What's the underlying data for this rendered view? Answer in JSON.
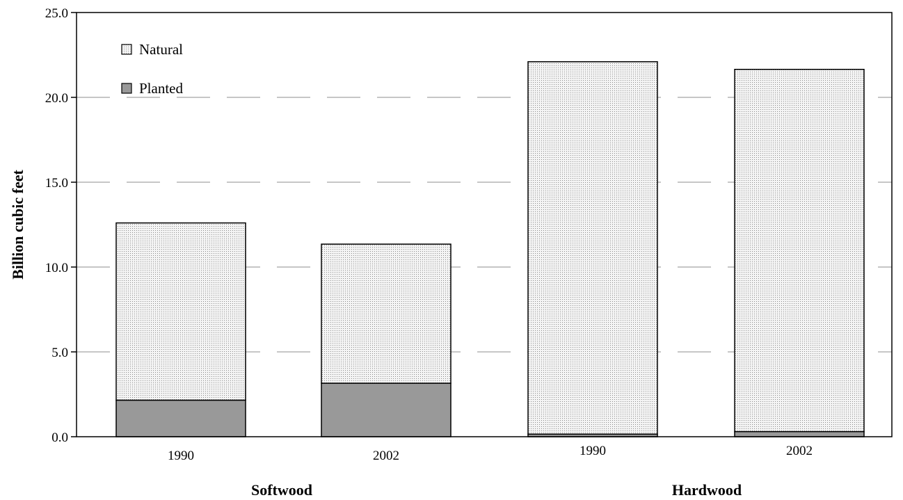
{
  "chart_data": {
    "type": "bar",
    "stacked": true,
    "ylabel": "Billion cubic feet",
    "ylim": [
      0,
      25
    ],
    "yticks": [
      "0.0",
      "5.0",
      "10.0",
      "15.0",
      "20.0",
      "25.0"
    ],
    "grid": "horizontal dashed",
    "legend_position": "top-left",
    "groups": [
      {
        "label": "Softwood",
        "categories": [
          "1990",
          "2002"
        ]
      },
      {
        "label": "Hardwood",
        "categories": [
          "1990",
          "2002"
        ]
      }
    ],
    "categories": [
      "1990",
      "2002",
      "1990",
      "2002"
    ],
    "series": [
      {
        "name": "Planted",
        "values": [
          2.15,
          3.15,
          0.15,
          0.3
        ],
        "color": "#999999"
      },
      {
        "name": "Natural",
        "values": [
          10.45,
          8.2,
          21.95,
          21.35
        ],
        "color": "#eeeeee",
        "pattern": "dotted"
      }
    ]
  }
}
